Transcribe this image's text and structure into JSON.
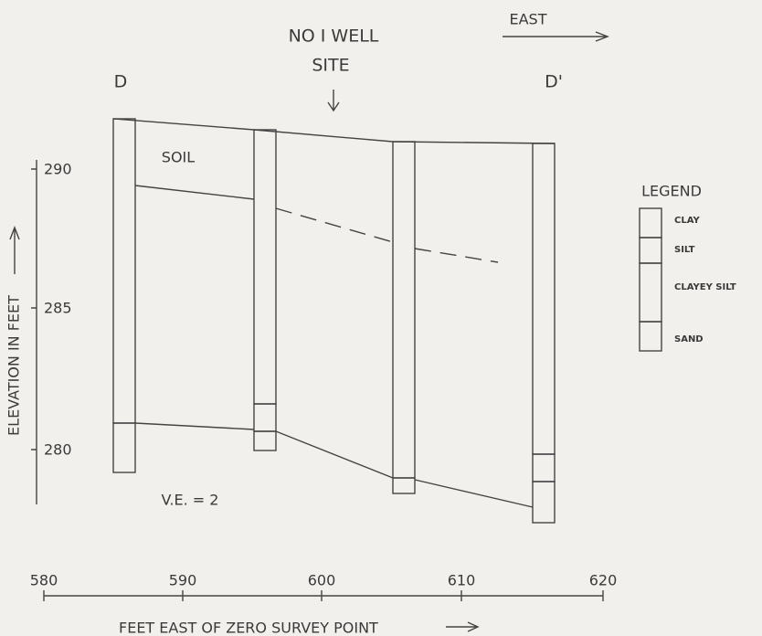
{
  "labels": {
    "well_site": [
      "NO I WELL",
      "SITE"
    ],
    "east": "EAST",
    "left_section": "D",
    "right_section": "D'",
    "soil": "SOIL",
    "ve": "V.E. = 2"
  },
  "y_axis": {
    "title": "ELEVATION IN FEET",
    "ticks": [
      "290",
      "285",
      "280"
    ]
  },
  "x_axis": {
    "title": "FEET EAST OF ZERO SURVEY POINT",
    "ticks": [
      "580",
      "590",
      "600",
      "610",
      "620"
    ]
  },
  "legend": {
    "title": "LEGEND",
    "items": [
      "CLAY",
      "SILT",
      "CLAYEY SILT",
      "SAND"
    ]
  }
}
